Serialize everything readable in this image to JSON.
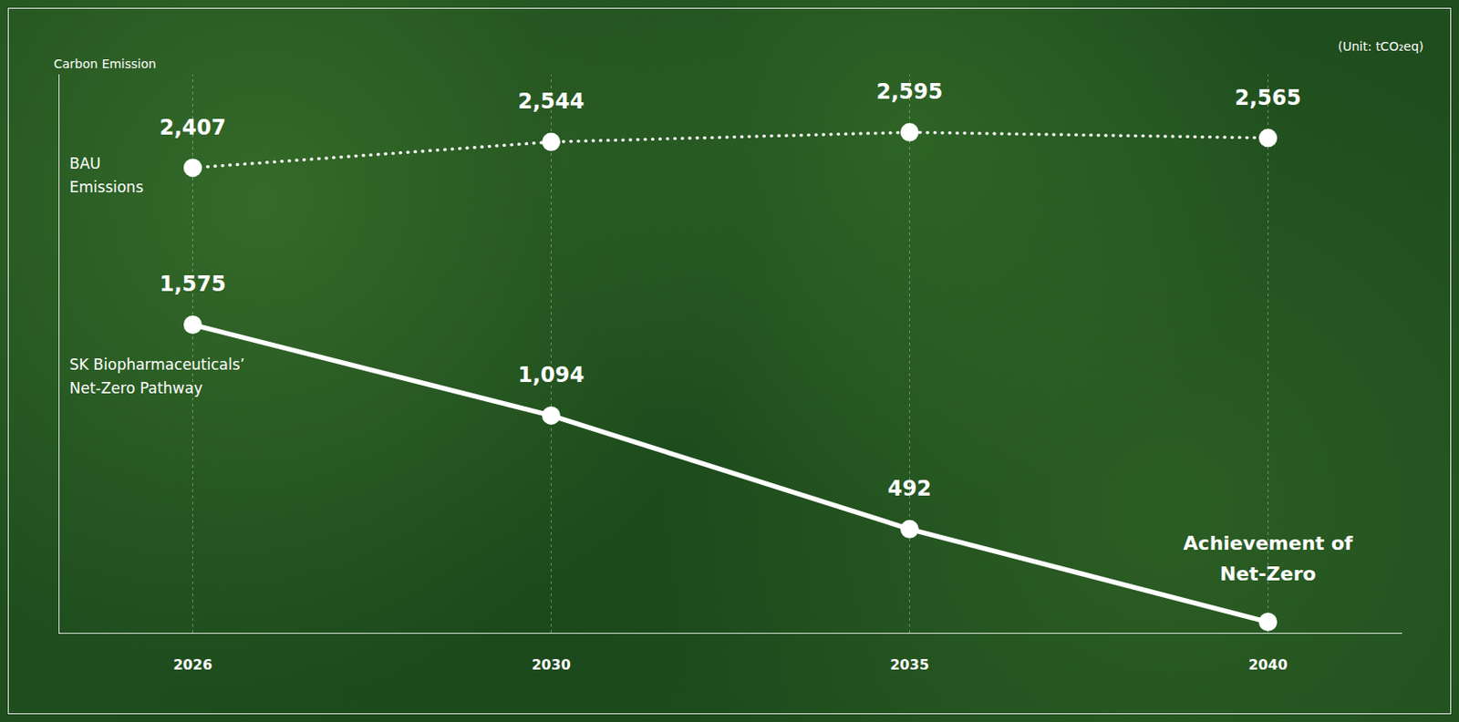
{
  "chart_data": {
    "type": "line",
    "ylabel": "Carbon Emission",
    "unit": "(Unit: tCO₂eq)",
    "categories": [
      "2026",
      "2030",
      "2035",
      "2040"
    ],
    "series": [
      {
        "name": "BAU Emissions",
        "color": "#ffffff",
        "line_style": "dotted",
        "marker": "circle",
        "values": [
          2407,
          2544,
          2595,
          2565
        ],
        "value_labels": [
          "2,407",
          "2,544",
          "2,595",
          "2,565"
        ]
      },
      {
        "name": "SK Biopharmaceuticals’ Net-Zero Pathway",
        "color": "#ffffff",
        "line_style": "solid",
        "marker": "circle",
        "values": [
          1575,
          1094,
          492,
          0
        ],
        "value_labels": [
          "1,575",
          "1,094",
          "492",
          null
        ]
      }
    ],
    "annotation": {
      "text": "Achievement of Net-Zero",
      "x": "2040",
      "y": 0
    },
    "ylim": [
      -60,
      2900
    ],
    "yticks": [],
    "grid": true,
    "data_labels": true,
    "tick_labels": "x"
  }
}
